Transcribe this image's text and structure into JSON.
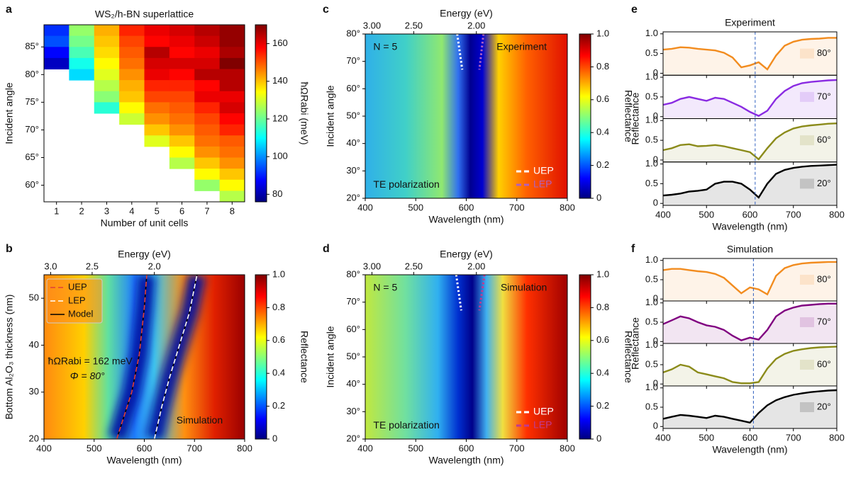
{
  "chart_data": [
    {
      "panel": "a",
      "type": "heatmap",
      "title": "WS₂/h-BN superlattice",
      "xlabel": "Number of unit cells",
      "ylabel": "Incident angle",
      "categories": [
        "1",
        "2",
        "3",
        "4",
        "5",
        "6",
        "7",
        "8"
      ],
      "y": [
        88,
        86,
        84,
        82,
        80,
        78,
        76,
        74,
        72,
        70,
        68,
        66,
        64,
        62,
        60,
        58
      ],
      "values": [
        [
          92,
          95,
          88,
          82,
          null,
          null,
          null,
          null,
          null,
          null,
          null,
          null,
          null,
          null,
          null,
          null
        ],
        [
          125,
          122,
          118,
          113,
          108,
          null,
          null,
          null,
          null,
          null,
          null,
          null,
          null,
          null,
          null,
          null
        ],
        [
          142,
          140,
          138,
          135,
          132,
          128,
          124,
          115,
          null,
          null,
          null,
          null,
          null,
          null,
          null,
          null
        ],
        [
          155,
          152,
          150,
          148,
          145,
          142,
          140,
          135,
          130,
          null,
          null,
          null,
          null,
          null,
          null,
          null
        ],
        [
          160,
          158,
          165,
          162,
          160,
          155,
          152,
          148,
          145,
          140,
          132,
          null,
          null,
          null,
          null,
          null
        ],
        [
          162,
          160,
          158,
          162,
          158,
          155,
          152,
          150,
          148,
          145,
          140,
          135,
          128,
          null,
          null,
          null
        ],
        [
          165,
          163,
          160,
          162,
          165,
          158,
          160,
          155,
          152,
          150,
          148,
          145,
          140,
          135,
          125,
          null
        ],
        [
          168,
          168,
          166,
          170,
          165,
          165,
          160,
          162,
          158,
          155,
          150,
          148,
          145,
          140,
          135,
          128
        ]
      ],
      "ylim": [
        57,
        89
      ],
      "yticks": [
        {
          "value": 60,
          "label": "60°"
        },
        {
          "value": 65,
          "label": "65°"
        },
        {
          "value": 70,
          "label": "70°"
        },
        {
          "value": 75,
          "label": "75°"
        },
        {
          "value": 80,
          "label": "80°"
        },
        {
          "value": 85,
          "label": "85°"
        }
      ],
      "clim": [
        76,
        170
      ],
      "cticks": [
        80,
        100,
        120,
        140,
        160
      ],
      "clabel": "ħΩRabi (meV)"
    },
    {
      "panel": "b",
      "type": "heatmap",
      "xlabel": "Wavelength (nm)",
      "ylabel": "Bottom Al₂O₃ thickness (nm)",
      "x2label": "Energy (eV)",
      "xlim": [
        400,
        800
      ],
      "xticks": [
        400,
        500,
        600,
        700,
        800
      ],
      "ylim": [
        20,
        55
      ],
      "yticks": [
        20,
        30,
        40,
        50
      ],
      "x2ticks": [
        {
          "value": 3,
          "label": "3.0"
        },
        2.5,
        {
          "value": 2,
          "label": "2.0"
        }
      ],
      "clim": [
        0,
        1
      ],
      "cticks": [
        0,
        0.2,
        0.4,
        0.6,
        0.8,
        {
          "value": 1,
          "label": "1.0"
        }
      ],
      "clabel": "Reflectance",
      "annotations": [
        "ħΩRabi = 162 meV",
        "Φ = 80°",
        "Simulation"
      ],
      "series": [
        {
          "name": "UEP",
          "color": "#e0403a",
          "style": "dashed",
          "x": [
            545,
            560,
            575,
            590,
            600,
            605
          ],
          "values": [
            20,
            25,
            30,
            38,
            48,
            55
          ]
        },
        {
          "name": "LEP",
          "color": "#ffffff",
          "style": "dashed",
          "x": [
            620,
            635,
            650,
            670,
            690,
            705
          ],
          "values": [
            20,
            27,
            33,
            40,
            47,
            55
          ]
        },
        {
          "name": "Model",
          "color": "#000000",
          "style": "solid",
          "x": [
            545,
            560,
            575,
            590,
            600,
            605,
            null,
            620,
            635,
            650,
            670,
            690,
            705
          ],
          "values": [
            20,
            25,
            30,
            38,
            48,
            55,
            null,
            20,
            27,
            33,
            40,
            47,
            55
          ]
        }
      ]
    },
    {
      "panel": "c",
      "type": "heatmap",
      "xlabel": "Wavelength (nm)",
      "ylabel": "Incident angle",
      "x2label": "Energy (eV)",
      "xlim": [
        400,
        800
      ],
      "xticks": [
        400,
        500,
        600,
        700,
        800
      ],
      "ylim": [
        20,
        80
      ],
      "yticks": [
        {
          "value": 20,
          "label": "20°"
        },
        {
          "value": 30,
          "label": "30°"
        },
        {
          "value": 40,
          "label": "40°"
        },
        {
          "value": 50,
          "label": "50°"
        },
        {
          "value": 60,
          "label": "60°"
        },
        {
          "value": 70,
          "label": "70°"
        },
        {
          "value": 80,
          "label": "80°"
        }
      ],
      "x2ticks": [
        {
          "value": 3,
          "label": "3.00"
        },
        {
          "value": 2.5,
          "label": "2.50"
        },
        {
          "value": 2,
          "label": "2.00"
        }
      ],
      "clim": [
        0,
        1
      ],
      "cticks": [
        0,
        0.2,
        0.4,
        0.6,
        0.8,
        {
          "value": 1,
          "label": "1.0"
        }
      ],
      "clabel": "Reflectance",
      "annotations": [
        "N = 5",
        "Experiment",
        "TE polarization"
      ],
      "series": [
        {
          "name": "UEP",
          "color": "#ffffff",
          "style": "dotted",
          "x": [
            582,
            592
          ],
          "values": [
            80,
            67
          ]
        },
        {
          "name": "LEP",
          "color": "#b060c0",
          "style": "dotted",
          "x": [
            634,
            626
          ],
          "values": [
            80,
            67
          ]
        }
      ]
    },
    {
      "panel": "d",
      "type": "heatmap",
      "xlabel": "Wavelength (nm)",
      "ylabel": "Incident angle",
      "x2label": "Energy (eV)",
      "xlim": [
        400,
        800
      ],
      "xticks": [
        400,
        500,
        600,
        700,
        800
      ],
      "ylim": [
        20,
        80
      ],
      "yticks": [
        {
          "value": 20,
          "label": "20°"
        },
        {
          "value": 30,
          "label": "30°"
        },
        {
          "value": 40,
          "label": "40°"
        },
        {
          "value": 50,
          "label": "50°"
        },
        {
          "value": 60,
          "label": "60°"
        },
        {
          "value": 70,
          "label": "70°"
        },
        {
          "value": 80,
          "label": "80°"
        }
      ],
      "x2ticks": [
        {
          "value": 3,
          "label": "3.00"
        },
        {
          "value": 2.5,
          "label": "2.50"
        },
        {
          "value": 2,
          "label": "2.00"
        }
      ],
      "clim": [
        0,
        1
      ],
      "cticks": [
        0,
        0.2,
        0.4,
        0.6,
        0.8,
        {
          "value": 1,
          "label": "1.0"
        }
      ],
      "clabel": "Reflectance",
      "annotations": [
        "N = 5",
        "Simulation",
        "TE polarization"
      ],
      "series": [
        {
          "name": "UEP",
          "color": "#ffffff",
          "style": "dotted",
          "x": [
            580,
            590
          ],
          "values": [
            80,
            67
          ]
        },
        {
          "name": "LEP",
          "color": "#c03a90",
          "style": "dotted",
          "x": [
            636,
            626
          ],
          "values": [
            80,
            67
          ]
        }
      ]
    },
    {
      "panel": "e",
      "type": "line",
      "title": "Experiment",
      "xlabel": "Wavelength (nm)",
      "ylabel": "Reflectance",
      "xlim": [
        400,
        800
      ],
      "xticks": [
        400,
        500,
        600,
        700,
        800
      ],
      "ylim": [
        -0.05,
        1.05
      ],
      "yticks": [
        0,
        0.5,
        {
          "value": 1,
          "label": "1.0"
        }
      ],
      "vline": 612,
      "x": [
        400,
        420,
        440,
        460,
        480,
        500,
        520,
        540,
        560,
        580,
        600,
        620,
        640,
        660,
        680,
        700,
        720,
        740,
        760,
        780,
        800
      ],
      "series": [
        {
          "name": "80°",
          "color": "#f28c1f",
          "values": [
            0.6,
            0.62,
            0.66,
            0.65,
            0.62,
            0.6,
            0.58,
            0.52,
            0.4,
            0.15,
            0.2,
            0.28,
            0.1,
            0.45,
            0.7,
            0.8,
            0.85,
            0.87,
            0.88,
            0.9,
            0.9
          ]
        },
        {
          "name": "70°",
          "color": "#8a2be2",
          "values": [
            0.3,
            0.35,
            0.45,
            0.5,
            0.45,
            0.4,
            0.48,
            0.45,
            0.35,
            0.25,
            0.12,
            0.02,
            0.15,
            0.45,
            0.65,
            0.78,
            0.85,
            0.88,
            0.9,
            0.92,
            0.93
          ]
        },
        {
          "name": "60°",
          "color": "#8b8b1a",
          "values": [
            0.25,
            0.3,
            0.38,
            0.4,
            0.35,
            0.36,
            0.38,
            0.35,
            0.3,
            0.25,
            0.2,
            0.02,
            0.3,
            0.55,
            0.7,
            0.8,
            0.85,
            0.88,
            0.9,
            0.92,
            0.93
          ]
        },
        {
          "name": "20°",
          "color": "#000000",
          "values": [
            0.2,
            0.22,
            0.25,
            0.3,
            0.32,
            0.35,
            0.5,
            0.55,
            0.55,
            0.5,
            0.35,
            0.15,
            0.5,
            0.75,
            0.85,
            0.9,
            0.93,
            0.95,
            0.96,
            0.97,
            0.98
          ]
        }
      ]
    },
    {
      "panel": "f",
      "type": "line",
      "title": "Simulation",
      "xlabel": "Wavelength (nm)",
      "ylabel": "Reflectance",
      "xlim": [
        400,
        800
      ],
      "xticks": [
        400,
        500,
        600,
        700,
        800
      ],
      "ylim": [
        -0.05,
        1.05
      ],
      "yticks": [
        0,
        0.5,
        {
          "value": 1,
          "label": "1.0"
        }
      ],
      "vline": 608,
      "x": [
        400,
        420,
        440,
        460,
        480,
        500,
        520,
        540,
        560,
        580,
        600,
        620,
        640,
        660,
        680,
        700,
        720,
        740,
        760,
        780,
        800
      ],
      "series": [
        {
          "name": "80°",
          "color": "#f28c1f",
          "values": [
            0.75,
            0.78,
            0.78,
            0.75,
            0.72,
            0.7,
            0.65,
            0.55,
            0.35,
            0.15,
            0.3,
            0.25,
            0.12,
            0.6,
            0.8,
            0.88,
            0.92,
            0.94,
            0.95,
            0.96,
            0.96
          ]
        },
        {
          "name": "70°",
          "color": "#800080",
          "values": [
            0.45,
            0.55,
            0.65,
            0.6,
            0.5,
            0.42,
            0.38,
            0.3,
            0.15,
            0.03,
            0.1,
            0.05,
            0.3,
            0.65,
            0.8,
            0.88,
            0.93,
            0.95,
            0.97,
            0.98,
            0.98
          ]
        },
        {
          "name": "60°",
          "color": "#8b8b1a",
          "values": [
            0.3,
            0.38,
            0.5,
            0.45,
            0.3,
            0.25,
            0.2,
            0.15,
            0.05,
            0.02,
            0.02,
            0.05,
            0.4,
            0.65,
            0.78,
            0.86,
            0.9,
            0.93,
            0.95,
            0.96,
            0.97
          ]
        },
        {
          "name": "20°",
          "color": "#000000",
          "values": [
            0.2,
            0.25,
            0.3,
            0.28,
            0.25,
            0.22,
            0.28,
            0.25,
            0.2,
            0.15,
            0.1,
            0.35,
            0.55,
            0.68,
            0.76,
            0.82,
            0.86,
            0.89,
            0.91,
            0.93,
            0.94
          ]
        }
      ]
    }
  ]
}
